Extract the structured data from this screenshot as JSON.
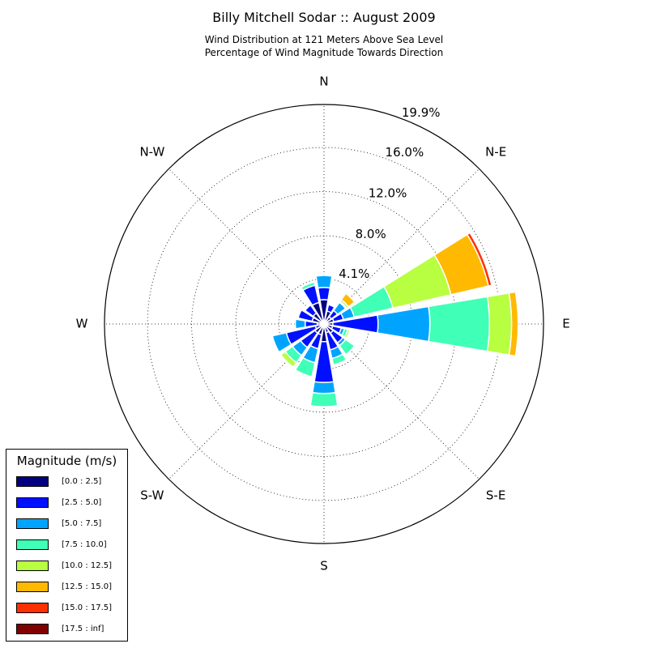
{
  "chart_data": {
    "type": "windrose",
    "title": "Billy Mitchell Sodar :: August 2009",
    "subtitle_lines": [
      "Wind Distribution at 121 Meters Above Sea Level",
      "Percentage of Wind Magnitude Towards Direction"
    ],
    "direction_labels": [
      "N",
      "N-E",
      "E",
      "S-E",
      "S",
      "S-W",
      "W",
      "N-W"
    ],
    "ring_values": [
      4.1,
      8.0,
      12.0,
      16.0,
      19.9
    ],
    "ring_labels": [
      "4.1%",
      "8.0%",
      "12.0%",
      "16.0%",
      "19.9%"
    ],
    "rmax": 19.9,
    "legend_title": "Magnitude (m/s)",
    "bins": [
      {
        "label": "[0.0 : 2.5]",
        "color": "#000080"
      },
      {
        "label": "[2.5 : 5.0]",
        "color": "#0010ff"
      },
      {
        "label": "[5.0 : 7.5]",
        "color": "#00a4ff"
      },
      {
        "label": "[7.5 : 10.0]",
        "color": "#40ffb7"
      },
      {
        "label": "[10.0 : 12.5]",
        "color": "#b7ff40"
      },
      {
        "label": "[12.5 : 15.0]",
        "color": "#ffb900"
      },
      {
        "label": "[15.0 : 17.5]",
        "color": "#ff3000"
      },
      {
        "label": "[17.5 : inf]",
        "color": "#800000"
      }
    ],
    "sector_directions_deg": [
      0,
      22.5,
      45,
      67.5,
      90,
      112.5,
      135,
      157.5,
      180,
      202.5,
      225,
      247.5,
      270,
      292.5,
      315,
      337.5
    ],
    "cumulative_percent": [
      [
        2.2,
        3.3,
        4.4,
        4.4,
        4.4,
        4.4,
        4.4,
        4.4
      ],
      [
        1.2,
        1.8,
        1.8,
        1.8,
        1.8,
        1.8,
        1.8,
        1.8
      ],
      [
        0.8,
        1.5,
        2.4,
        2.5,
        2.7,
        3.4,
        3.4,
        3.4
      ],
      [
        0.9,
        1.8,
        2.8,
        6.4,
        11.8,
        15.3,
        15.6,
        15.6
      ],
      [
        0.8,
        4.9,
        9.6,
        15.0,
        17.0,
        17.6,
        17.6,
        17.6
      ],
      [
        0.8,
        1.6,
        1.9,
        2.2,
        2.4,
        2.4,
        2.4,
        2.4
      ],
      [
        1.0,
        2.1,
        2.4,
        3.4,
        3.4,
        3.4,
        3.4,
        3.4
      ],
      [
        0.8,
        2.4,
        3.2,
        3.8,
        3.8,
        3.8,
        3.8,
        3.8
      ],
      [
        1.6,
        5.3,
        6.3,
        7.5,
        7.5,
        7.5,
        7.5,
        7.5
      ],
      [
        1.0,
        2.3,
        3.6,
        4.9,
        5.0,
        5.0,
        5.0,
        5.0
      ],
      [
        1.0,
        2.6,
        3.5,
        4.3,
        4.8,
        4.8,
        4.8,
        4.8
      ],
      [
        0.8,
        3.5,
        4.8,
        4.8,
        4.8,
        4.8,
        4.8,
        4.8
      ],
      [
        0.6,
        1.7,
        2.6,
        2.6,
        2.6,
        2.6,
        2.6,
        2.6
      ],
      [
        1.1,
        2.4,
        2.4,
        2.4,
        2.4,
        2.4,
        2.4,
        2.4
      ],
      [
        1.2,
        2.1,
        2.2,
        2.2,
        2.2,
        2.2,
        2.2,
        2.2
      ],
      [
        2.0,
        3.6,
        3.6,
        3.9,
        3.9,
        3.9,
        3.9,
        3.9
      ]
    ],
    "grid": true
  }
}
